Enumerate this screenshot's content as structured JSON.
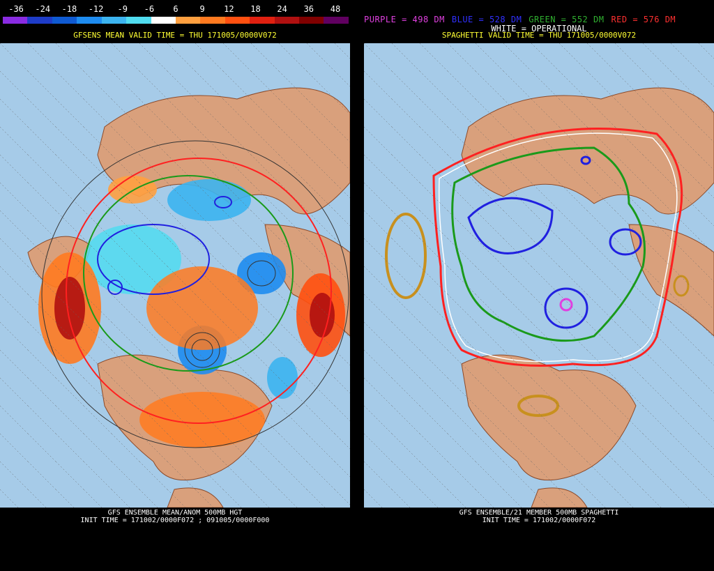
{
  "left": {
    "legend_ticks": [
      "-36",
      "-24",
      "-18",
      "-12",
      "-9",
      "-6",
      "6",
      "9",
      "12",
      "18",
      "24",
      "36",
      "48"
    ],
    "legend_colors": [
      "#8a2be2",
      "#1e3cc8",
      "#0f5ad2",
      "#1e8cf0",
      "#3cb4f0",
      "#50dcf0",
      "#ffffff",
      "#ffa040",
      "#ff7a20",
      "#ff5010",
      "#e02010",
      "#b01010",
      "#800000",
      "#600060"
    ],
    "valid_time": "GFSENS MEAN VALID TIME = THU 171005/0000V072",
    "footer_line1": "GFS ENSEMBLE MEAN/ANOM 500MB HGT",
    "footer_line2": "INIT TIME = 171002/0000F072 ; 091005/0000F000"
  },
  "right": {
    "legend": [
      {
        "text": "PURPLE = 498 DM",
        "color": "#e040e0"
      },
      {
        "text": "BLUE = 528 DM",
        "color": "#3030ff"
      },
      {
        "text": "GREEN = 552 DM",
        "color": "#30b030"
      },
      {
        "text": "RED = 576 DM",
        "color": "#ff3030"
      }
    ],
    "legend2": "WHITE = OPERATIONAL",
    "valid_time": "SPAGHETTI VALID TIME = THU 171005/0000V072",
    "footer_line1": "GFS ENSEMBLE/21 MEMBER 500MB SPAGHETTI",
    "footer_line2": "INIT TIME = 171002/0000F072"
  },
  "colors": {
    "ocean": "#a6cbe8",
    "land": "#d9a07c",
    "coast": "#8b4a2a"
  }
}
